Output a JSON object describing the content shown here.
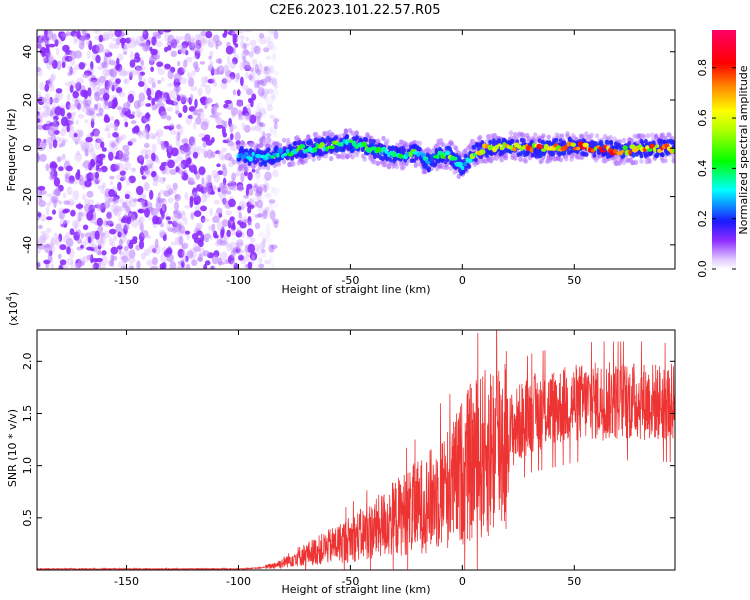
{
  "title": "C2E6.2023.101.22.57.R05",
  "colors": {
    "axis": "#000000",
    "snr_line": "#ee3333",
    "background": "#ffffff"
  },
  "chart_data": [
    {
      "type": "heatmap",
      "xlabel": "Height of straight line (km)",
      "ylabel": "Frequency (Hz)",
      "xlim": [
        -190,
        95
      ],
      "ylim": [
        -50,
        49
      ],
      "x_ticks": [
        -150,
        -100,
        -50,
        0,
        50
      ],
      "x_tick_labels": [
        "-150",
        "-100",
        "-50",
        "0",
        "50"
      ],
      "y_ticks": [
        -40,
        -20,
        0,
        20,
        40
      ],
      "y_tick_labels": [
        "-40",
        "-20",
        "0",
        "20",
        "40"
      ],
      "grid": false,
      "noise_region": {
        "x": [
          -190,
          -87
        ],
        "y": [
          -50,
          49
        ],
        "level": 0.2
      },
      "signal_track": {
        "x": [
          -100,
          -90,
          -80,
          -70,
          -60,
          -50,
          -40,
          -30,
          -20,
          -15,
          -10,
          -5,
          0,
          5,
          10,
          20,
          30,
          40,
          50,
          60,
          70,
          80,
          95
        ],
        "y": [
          -3,
          -4,
          -2,
          0,
          1,
          2,
          0,
          -3,
          -2,
          -6,
          -2,
          -3,
          -8,
          -2,
          0,
          1,
          0,
          0,
          1,
          0,
          -1,
          0,
          0
        ],
        "amplitude": [
          0.3,
          0.35,
          0.45,
          0.5,
          0.5,
          0.5,
          0.45,
          0.45,
          0.5,
          0.3,
          0.45,
          0.55,
          0.35,
          0.6,
          0.75,
          0.8,
          0.8,
          0.85,
          0.85,
          0.85,
          0.8,
          0.8,
          0.75
        ],
        "width_hz": 8
      },
      "colorbar": {
        "label": "Normalized spectral amplitude",
        "range": [
          0,
          0.95
        ],
        "ticks": [
          0.0,
          0.2,
          0.4,
          0.6,
          0.8
        ],
        "tick_labels": [
          "0.0",
          "0.2",
          "0.4",
          "0.6",
          "0.8"
        ]
      }
    },
    {
      "type": "line",
      "xlabel": "Height of straight line (km)",
      "ylabel": "SNR (10 * v/v)",
      "y_multiplier": "(x10",
      "y_multiplier_exp": "4",
      "y_multiplier_close": ")",
      "xlim": [
        -190,
        95
      ],
      "ylim": [
        0,
        2.3
      ],
      "x_ticks": [
        -150,
        -100,
        -50,
        0,
        50
      ],
      "x_tick_labels": [
        "-150",
        "-100",
        "-50",
        "0",
        "50"
      ],
      "y_ticks": [
        0.5,
        1.0,
        1.5,
        2.0
      ],
      "y_tick_labels": [
        "0.5",
        "1.0",
        "1.5",
        "2.0"
      ],
      "grid": false,
      "series": [
        {
          "color": "#ee3333",
          "x": [
            -190,
            -100,
            -90,
            -85,
            -80,
            -75,
            -70,
            -60,
            -50,
            -40,
            -30,
            -20,
            -15,
            -10,
            -5,
            0,
            5,
            10,
            15,
            20,
            25,
            30,
            40,
            50,
            60,
            70,
            80,
            95
          ],
          "y": [
            0.01,
            0.01,
            0.02,
            0.04,
            0.07,
            0.12,
            0.15,
            0.22,
            0.3,
            0.38,
            0.5,
            0.6,
            0.65,
            0.75,
            0.8,
            0.95,
            1.05,
            1.1,
            1.2,
            1.3,
            1.4,
            1.5,
            1.55,
            1.6,
            1.62,
            1.62,
            1.62,
            1.6
          ]
        }
      ]
    }
  ]
}
